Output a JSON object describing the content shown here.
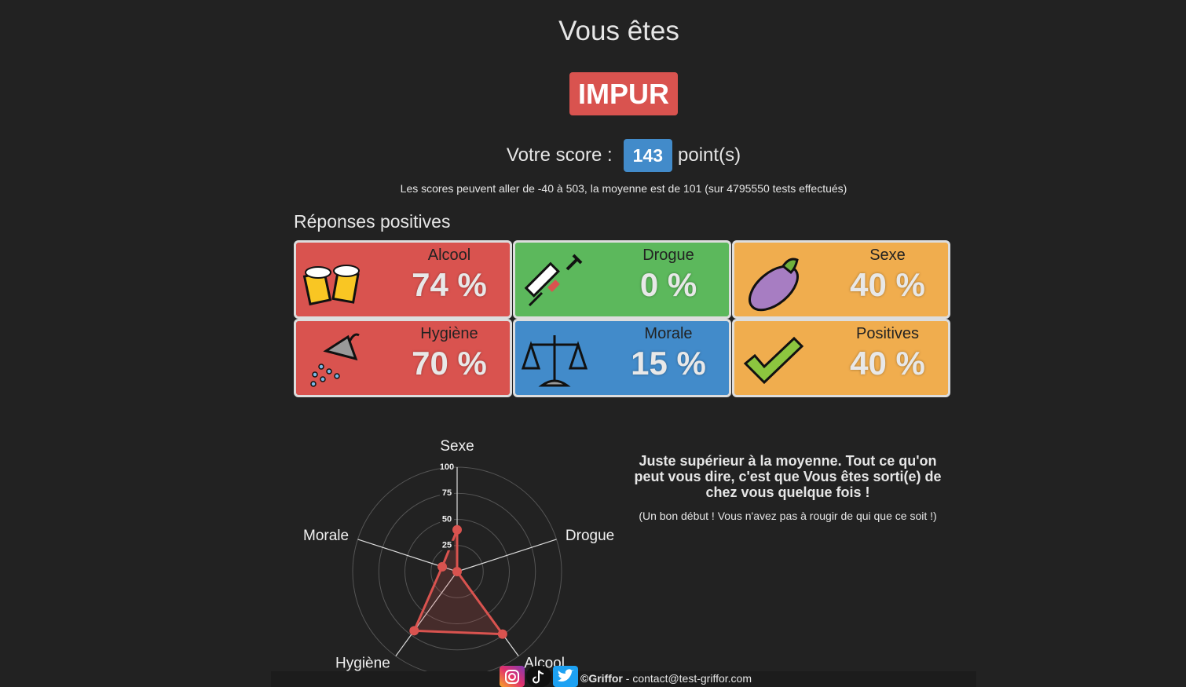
{
  "header": {
    "heading": "Vous êtes",
    "result": "IMPUR",
    "score_label": "Votre score :",
    "score": 143,
    "score_unit": "point(s)",
    "range_note": "Les scores peuvent aller de -40 à 503, la moyenne est de 101 (sur 4795550 tests effectués)"
  },
  "cards_title": "Réponses positives",
  "cards": [
    {
      "name": "Alcool",
      "value": "74 %",
      "color": "#d9534f"
    },
    {
      "name": "Drogue",
      "value": "0 %",
      "color": "#5cb85c"
    },
    {
      "name": "Sexe",
      "value": "40 %",
      "color": "#f0ad4e"
    },
    {
      "name": "Hygiène",
      "value": "70 %",
      "color": "#d9534f"
    },
    {
      "name": "Morale",
      "value": "15 %",
      "color": "#428bca"
    },
    {
      "name": "Positives",
      "value": "40 %",
      "color": "#f0ad4e"
    }
  ],
  "chart_data": {
    "type": "radar",
    "categories": [
      "Sexe",
      "Drogue",
      "Alcool",
      "Hygiène",
      "Morale"
    ],
    "values": [
      40,
      0,
      74,
      70,
      15
    ],
    "color": "#d9534f",
    "rlim": [
      0,
      100
    ],
    "rticks": [
      25,
      50,
      75,
      100
    ],
    "grid": true
  },
  "verdict": {
    "text": "Juste supérieur à la moyenne. Tout ce qu'on peut vous dire, c'est que Vous êtes sorti(e) de chez vous quelque fois !",
    "note": "(Un bon début ! Vous n'avez pas à rougir de qui que ce soit !)"
  },
  "footer": {
    "brand": "©Griffor",
    "contact": "- contact@test-griffor.com"
  }
}
